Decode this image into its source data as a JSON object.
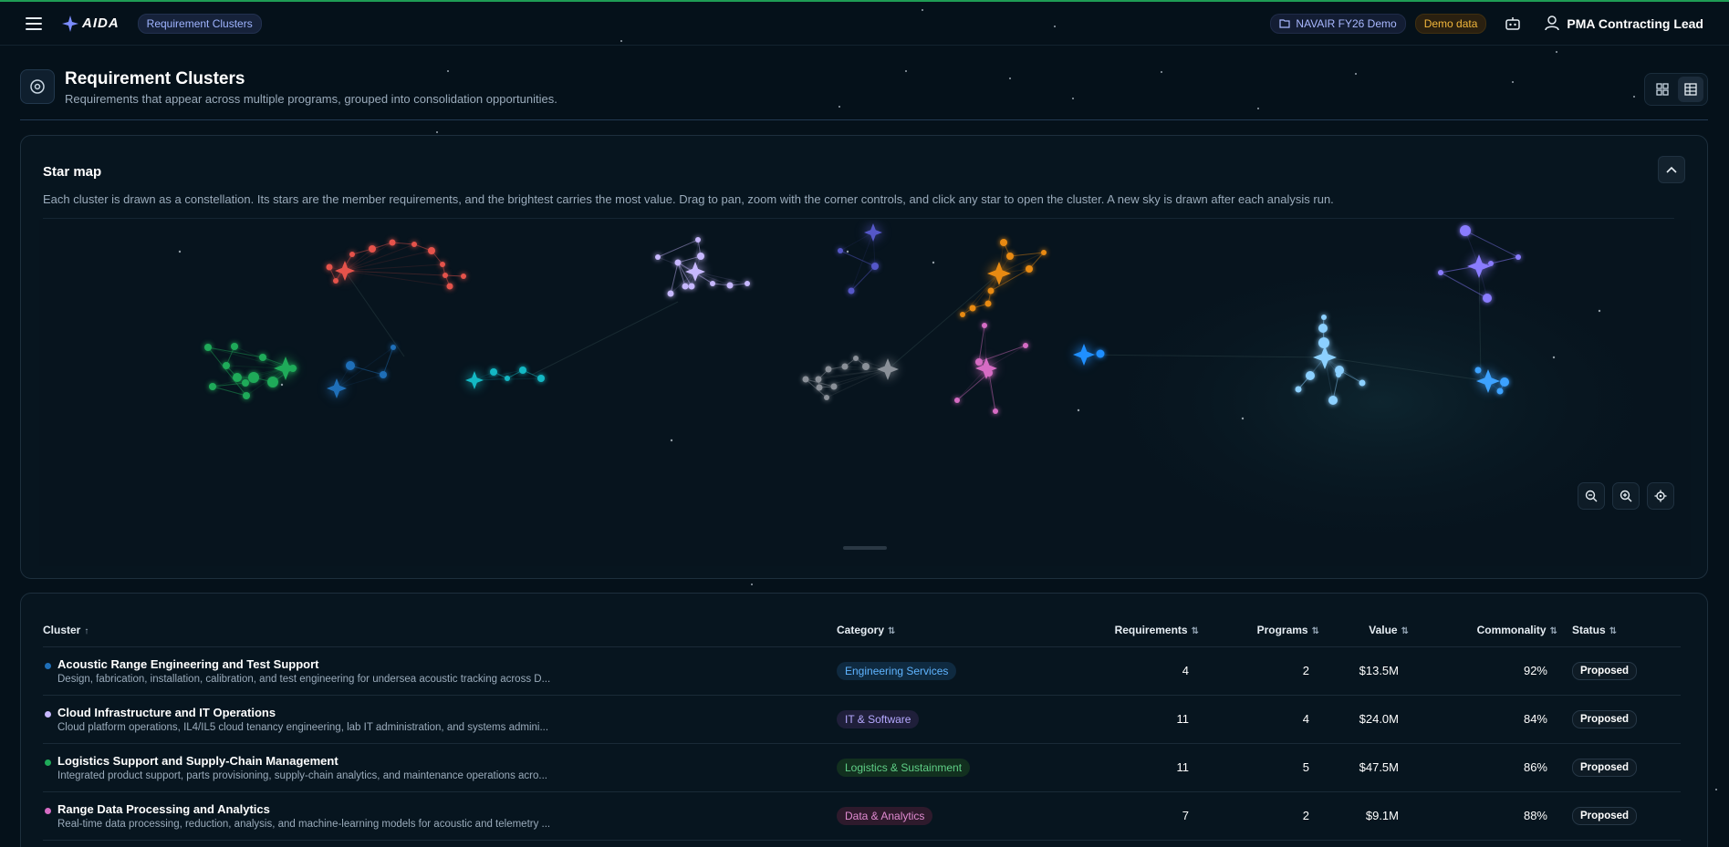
{
  "app": {
    "logo_text": "AIDA",
    "breadcrumb": "Requirement Clusters",
    "workspace": "NAVAIR FY26 Demo",
    "demo_badge": "Demo data",
    "user_name": "PMA Contracting Lead"
  },
  "page": {
    "title": "Requirement Clusters",
    "subtitle": "Requirements that appear across multiple programs, grouped into consolidation opportunities."
  },
  "star_map": {
    "title": "Star map",
    "description": "Each cluster is drawn as a constellation. Its stars are the member requirements, and the brightest carries the most value. Drag to pan, zoom with the corner controls, and click any star to open the cluster. A new sky is drawn after each analysis run."
  },
  "table": {
    "columns": {
      "cluster": "Cluster",
      "category": "Category",
      "requirements": "Requirements",
      "programs": "Programs",
      "value": "Value",
      "commonality": "Commonality",
      "status": "Status"
    },
    "sort_asc_glyph": "↑",
    "sort_glyph": "⇅",
    "rows": [
      {
        "name": "Acoustic Range Engineering and Test Support",
        "description": "Design, fabrication, installation, calibration, and test engineering for undersea acoustic tracking across D...",
        "dot_color": "#1f6fb8",
        "category": "Engineering Services",
        "cat_fg": "#5fb4ff",
        "cat_bg": "#0f2a40",
        "requirements": "4",
        "programs": "2",
        "value": "$13.5M",
        "commonality": "92%",
        "status": "Proposed"
      },
      {
        "name": "Cloud Infrastructure and IT Operations",
        "description": "Cloud platform operations, IL4/IL5 cloud tenancy engineering, lab IT administration, and systems admini...",
        "dot_color": "#c7b8ff",
        "category": "IT & Software",
        "cat_fg": "#b5a8ff",
        "cat_bg": "#1f1f3a",
        "requirements": "11",
        "programs": "4",
        "value": "$24.0M",
        "commonality": "84%",
        "status": "Proposed"
      },
      {
        "name": "Logistics Support and Supply-Chain Management",
        "description": "Integrated product support, parts provisioning, supply-chain analytics, and maintenance operations acro...",
        "dot_color": "#1faa59",
        "category": "Logistics & Sustainment",
        "cat_fg": "#5fcf86",
        "cat_bg": "#12301f",
        "requirements": "11",
        "programs": "5",
        "value": "$47.5M",
        "commonality": "86%",
        "status": "Proposed"
      },
      {
        "name": "Range Data Processing and Analytics",
        "description": "Real-time data processing, reduction, analysis, and machine-learning models for acoustic and telemetry ...",
        "dot_color": "#d66cc4",
        "category": "Data & Analytics",
        "cat_fg": "#e08ad0",
        "cat_bg": "#2e1a2c",
        "requirements": "7",
        "programs": "2",
        "value": "$9.1M",
        "commonality": "88%",
        "status": "Proposed"
      }
    ]
  },
  "icons": {
    "menu": "menu-icon",
    "workspace": "folder-icon",
    "assistant": "robot-icon",
    "user": "user-icon",
    "page": "cluster-icon",
    "grid_view": "grid-icon",
    "table_view": "table-icon",
    "collapse": "chevron-up-icon",
    "zoom_out": "zoom-out-icon",
    "zoom_in": "zoom-in-icon",
    "recenter": "target-icon"
  },
  "constellation_colors": [
    "#e5534b",
    "#c7b8ff",
    "#5557c8",
    "#e88a12",
    "#8a7cff",
    "#1faa59",
    "#1f6fb8",
    "#14b8c4",
    "#8a9098",
    "#d66cc4",
    "#1f8fff",
    "#8cd0ff",
    "#3da2ff"
  ]
}
